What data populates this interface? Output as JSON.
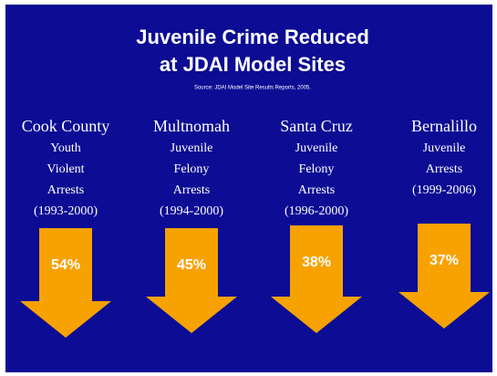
{
  "title": [
    "Juvenile Crime Reduced",
    "at JDAI Model Sites"
  ],
  "source": "Source: JDAI Model Site Results Reports, 2005.",
  "sites": [
    {
      "name": "Cook County",
      "lines": [
        "Youth",
        "Violent",
        "Arrests",
        "(1993-2000)"
      ],
      "reduction": "54%"
    },
    {
      "name": "Multnomah",
      "lines": [
        "Juvenile",
        "Felony",
        "Arrests",
        "(1994-2000)"
      ],
      "reduction": "45%"
    },
    {
      "name": "Santa Cruz",
      "lines": [
        "Juvenile",
        "Felony",
        "Arrests",
        "(1996-2000)"
      ],
      "reduction": "38%"
    },
    {
      "name": "Bernalillo",
      "lines": [
        "Juvenile",
        "Arrests",
        "(1999-2006)"
      ],
      "reduction": "37%"
    }
  ]
}
